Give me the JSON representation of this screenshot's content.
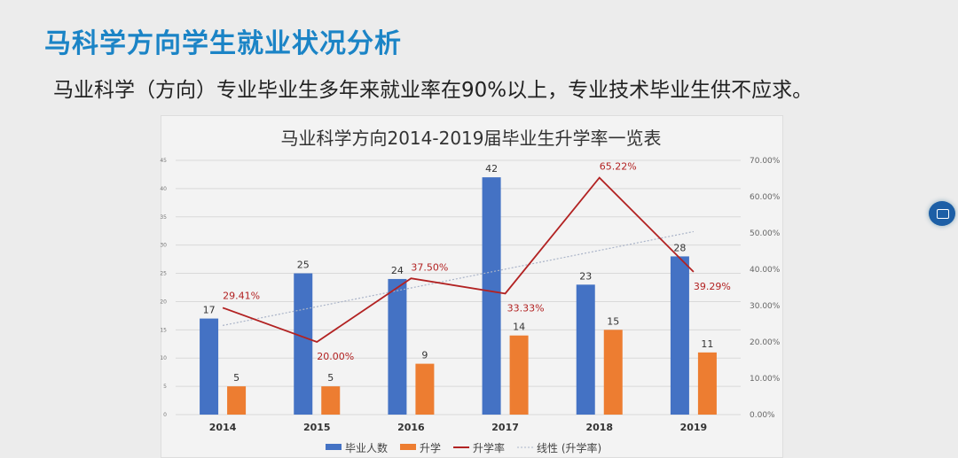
{
  "slide": {
    "title": "马科学方向学生就业状况分析",
    "subtitle": "马业科学（方向）专业毕业生多年来就业率在90%以上，专业技术毕业生供不应求。"
  },
  "chart_data": {
    "type": "bar",
    "title": "马业科学方向2014-2019届毕业生升学率一览表",
    "categories": [
      "2014",
      "2015",
      "2016",
      "2017",
      "2018",
      "2019"
    ],
    "series": [
      {
        "name": "毕业人数",
        "type": "bar",
        "axis": "left",
        "color": "#4472c4",
        "values": [
          17,
          25,
          24,
          42,
          23,
          28
        ],
        "labels": [
          "17",
          "25",
          "24",
          "42",
          "23",
          "28"
        ]
      },
      {
        "name": "升学",
        "type": "bar",
        "axis": "left",
        "color": "#ed7d31",
        "values": [
          5,
          5,
          9,
          14,
          15,
          11
        ],
        "labels": [
          "5",
          "5",
          "9",
          "14",
          "15",
          "11"
        ]
      },
      {
        "name": "升学率",
        "type": "line",
        "axis": "right",
        "color": "#b22222",
        "values": [
          29.41,
          20.0,
          37.5,
          33.33,
          65.22,
          39.29
        ],
        "labels": [
          "29.41%",
          "20.00%",
          "37.50%",
          "33.33%",
          "65.22%",
          "39.29%"
        ]
      },
      {
        "name": "线性 (升学率)",
        "type": "trendline",
        "axis": "right",
        "color": "#aab4c8"
      }
    ],
    "left_axis": {
      "ylim": [
        0,
        45
      ],
      "ticks": [
        "0",
        "5",
        "10",
        "15",
        "20",
        "25",
        "30",
        "35",
        "40",
        "45"
      ]
    },
    "right_axis": {
      "ylim": [
        0,
        70
      ],
      "ticks": [
        "0.00%",
        "10.00%",
        "20.00%",
        "30.00%",
        "40.00%",
        "50.00%",
        "60.00%",
        "70.00%"
      ]
    },
    "grid": true,
    "legend": "bottom"
  },
  "icons": {
    "floating_button": "screen-share-icon"
  }
}
